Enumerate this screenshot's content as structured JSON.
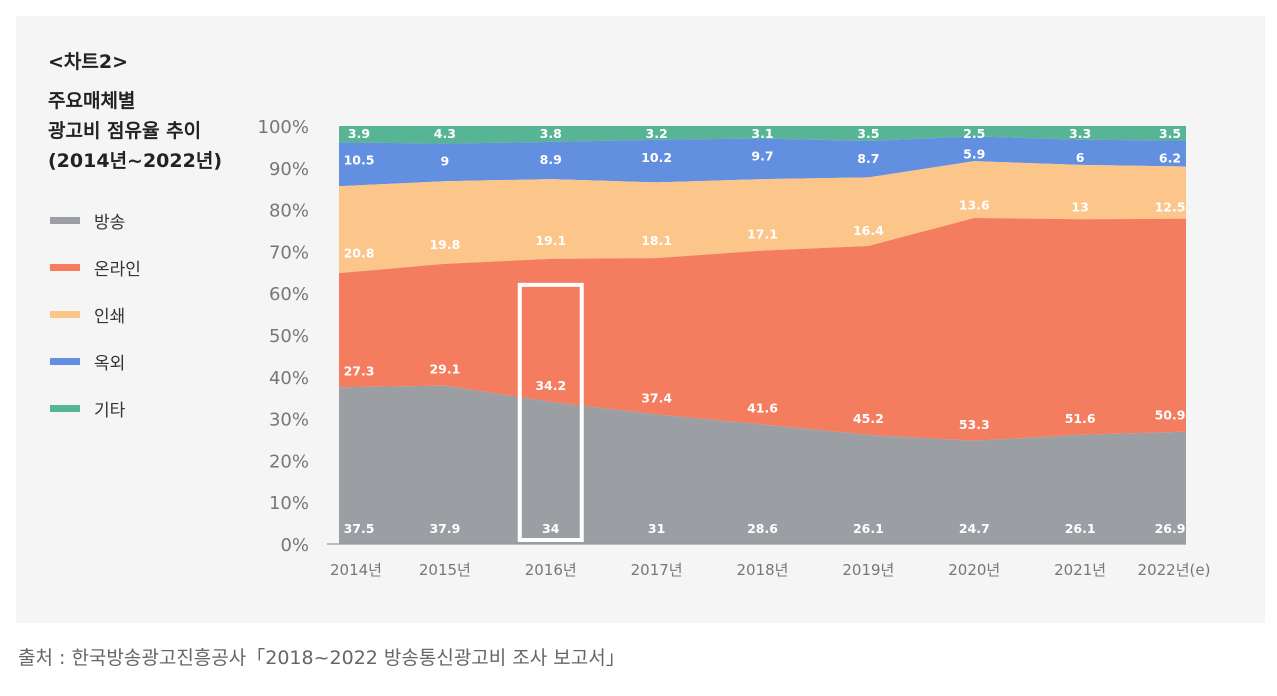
{
  "header": {
    "chart_tag": "<차트2>",
    "title_lines": [
      "주요매체별",
      "광고비 점유율 추이",
      "(2014년~2022년)"
    ]
  },
  "legend": [
    {
      "label": "방송",
      "color": "#9b9ea2"
    },
    {
      "label": "온라인",
      "color": "#f47c5f"
    },
    {
      "label": "인쇄",
      "color": "#fcc58a"
    },
    {
      "label": "옥외",
      "color": "#638fe0"
    },
    {
      "label": "기타",
      "color": "#57b595"
    }
  ],
  "source": "출처 : 한국방송광고진흥공사「2018~2022 방송통신광고비 조사 보고서」",
  "highlight": {
    "category": "2016년",
    "stack_top_percent": 62
  },
  "chart_data": {
    "type": "area",
    "stacked": true,
    "title": "주요매체별 광고비 점유율 추이 (2014년~2022년)",
    "categories": [
      "2014년",
      "2015년",
      "2016년",
      "2017년",
      "2018년",
      "2019년",
      "2020년",
      "2021년",
      "2022년(e)"
    ],
    "series": [
      {
        "name": "방송",
        "values": [
          37.5,
          37.9,
          34,
          31,
          28.6,
          26.1,
          24.7,
          26.1,
          26.9
        ]
      },
      {
        "name": "온라인",
        "values": [
          27.3,
          29.1,
          34.2,
          37.4,
          41.6,
          45.2,
          53.3,
          51.6,
          50.9
        ]
      },
      {
        "name": "인쇄",
        "values": [
          20.8,
          19.8,
          19.1,
          18.1,
          17.1,
          16.4,
          13.6,
          13,
          12.5
        ]
      },
      {
        "name": "옥외",
        "values": [
          10.5,
          9,
          8.9,
          10.2,
          9.7,
          8.7,
          5.9,
          6,
          6.2
        ]
      },
      {
        "name": "기타",
        "values": [
          3.9,
          4.3,
          3.8,
          3.2,
          3.1,
          3.5,
          2.5,
          3.3,
          3.5
        ]
      }
    ],
    "yticks": [
      "0%",
      "10%",
      "20%",
      "30%",
      "40%",
      "50%",
      "60%",
      "70%",
      "80%",
      "90%",
      "100%"
    ],
    "ylim": [
      0,
      100
    ],
    "xlabel": "",
    "ylabel": "",
    "grid": false,
    "legend_position": "left"
  }
}
